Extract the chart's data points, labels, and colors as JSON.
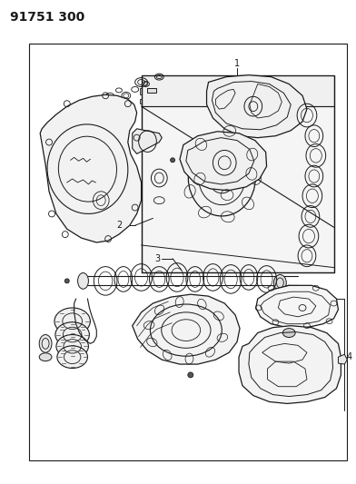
{
  "title": "91751 300",
  "title_fontsize": 10,
  "title_fontweight": "bold",
  "bg_color": "#ffffff",
  "line_color": "#1a1a1a",
  "fig_width": 3.92,
  "fig_height": 5.33,
  "dpi": 100
}
